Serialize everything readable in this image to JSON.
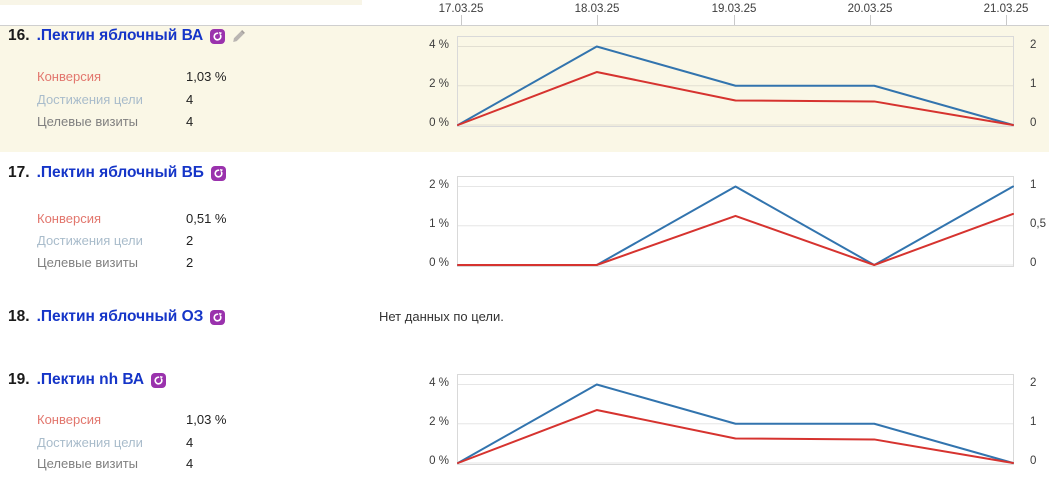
{
  "date_axis": {
    "labels": [
      "17.03.25",
      "18.03.25",
      "19.03.25",
      "20.03.25",
      "21.03.25"
    ]
  },
  "colors": {
    "highlight_row_bg": "#faf7e6",
    "line_blue": "#3274ae",
    "line_red": "#d6332f",
    "link_blue": "#1535c8",
    "conversion_label": "#e2766d",
    "goal_reaches_label": "#a9bccb",
    "goal_visits_label": "#7f7f7f",
    "badge_purple": "#9a32ad"
  },
  "rows": [
    {
      "number": "16.",
      "title": ".Пектин яблочный ВА",
      "icons": [
        "retargeting-goal-icon",
        "edit-pencil-icon"
      ],
      "highlighted": true,
      "metrics": [
        {
          "label": "Конверсия",
          "value": "1,03 %"
        },
        {
          "label": "Достижения цели",
          "value": "4"
        },
        {
          "label": "Целевые визиты",
          "value": "4"
        }
      ]
    },
    {
      "number": "17.",
      "title": ".Пектин яблочный ВБ",
      "icons": [
        "retargeting-goal-icon"
      ],
      "highlighted": false,
      "metrics": [
        {
          "label": "Конверсия",
          "value": "0,51 %"
        },
        {
          "label": "Достижения цели",
          "value": "2"
        },
        {
          "label": "Целевые визиты",
          "value": "2"
        }
      ]
    },
    {
      "number": "18.",
      "title": ".Пектин яблочный ОЗ",
      "icons": [
        "retargeting-goal-icon"
      ],
      "highlighted": false,
      "note": "Нет данных по цели."
    },
    {
      "number": "19.",
      "title": ".Пектин nh ВА",
      "icons": [
        "retargeting-goal-icon"
      ],
      "highlighted": false,
      "metrics": [
        {
          "label": "Конверсия",
          "value": "1,03 %"
        },
        {
          "label": "Достижения цели",
          "value": "4"
        },
        {
          "label": "Целевые визиты",
          "value": "4"
        }
      ]
    }
  ],
  "chart_data": [
    {
      "type": "line",
      "title": ".Пектин яблочный ВА",
      "categories": [
        "17.03.25",
        "18.03.25",
        "19.03.25",
        "20.03.25",
        "21.03.25"
      ],
      "left_axis": {
        "ticks": [
          "4 %",
          "2 %",
          "0 %"
        ],
        "max": 4,
        "unit": "%"
      },
      "right_axis": {
        "ticks": [
          "2",
          "1",
          "0"
        ],
        "max": 2
      },
      "grid_color": "#e2dfd2",
      "legend": false,
      "series": [
        {
          "name": "Достижения цели",
          "axis": "right",
          "axis_max": 2,
          "color": "#3274ae",
          "values": [
            0,
            2,
            1,
            1,
            0
          ]
        },
        {
          "name": "Конверсия",
          "axis": "left",
          "axis_max": 4,
          "color": "#d6332f",
          "values": [
            0,
            2.7,
            1.25,
            1.2,
            0
          ]
        }
      ]
    },
    {
      "type": "line",
      "title": ".Пектин яблочный ВБ",
      "categories": [
        "17.03.25",
        "18.03.25",
        "19.03.25",
        "20.03.25",
        "21.03.25"
      ],
      "left_axis": {
        "ticks": [
          "2 %",
          "1 %",
          "0 %"
        ],
        "max": 2,
        "unit": "%"
      },
      "right_axis": {
        "ticks": [
          "1",
          "0,5",
          "0"
        ],
        "max": 1
      },
      "grid_color": "#e6e6e6",
      "legend": false,
      "series": [
        {
          "name": "Достижения цели",
          "axis": "right",
          "axis_max": 1,
          "color": "#3274ae",
          "values": [
            0,
            0,
            1,
            0,
            1
          ]
        },
        {
          "name": "Конверсия",
          "axis": "left",
          "axis_max": 2,
          "color": "#d6332f",
          "values": [
            0,
            0,
            1.25,
            0,
            1.3
          ]
        }
      ]
    },
    {
      "type": "line",
      "title": ".Пектин nh ВА",
      "categories": [
        "17.03.25",
        "18.03.25",
        "19.03.25",
        "20.03.25",
        "21.03.25"
      ],
      "left_axis": {
        "ticks": [
          "4 %",
          "2 %",
          "0 %"
        ],
        "max": 4,
        "unit": "%"
      },
      "right_axis": {
        "ticks": [
          "2",
          "1",
          "0"
        ],
        "max": 2
      },
      "grid_color": "#e6e6e6",
      "legend": false,
      "series": [
        {
          "name": "Достижения цели",
          "axis": "right",
          "axis_max": 2,
          "color": "#3274ae",
          "values": [
            0,
            2,
            1,
            1,
            0
          ]
        },
        {
          "name": "Конверсия",
          "axis": "left",
          "axis_max": 4,
          "color": "#d6332f",
          "values": [
            0,
            2.7,
            1.25,
            1.2,
            0
          ]
        }
      ]
    }
  ]
}
